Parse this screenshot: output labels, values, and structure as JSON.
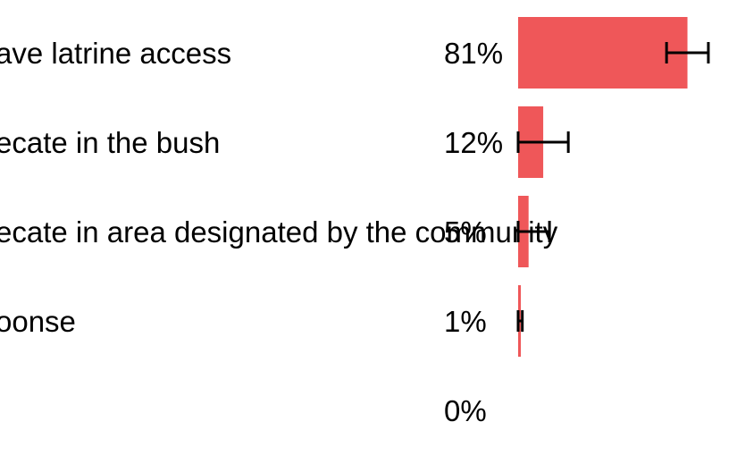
{
  "chart_data": {
    "type": "bar",
    "orientation": "horizontal",
    "categories": [
      "ave latrine access",
      "ecate in the bush",
      "ecate in area designated by the community",
      "oonse",
      ""
    ],
    "values": [
      81,
      12,
      5,
      1,
      0
    ],
    "value_labels": [
      "81%",
      "12%",
      "5%",
      "1%",
      "0%"
    ],
    "error_bars": [
      [
        71,
        91
      ],
      [
        0,
        24
      ],
      [
        0,
        15
      ],
      [
        0,
        2
      ],
      [
        0,
        0
      ]
    ],
    "xlim": [
      0,
      100
    ],
    "bar_color": "#ef5759",
    "error_bar_color": "#000000",
    "grid": false,
    "legend": "none"
  }
}
